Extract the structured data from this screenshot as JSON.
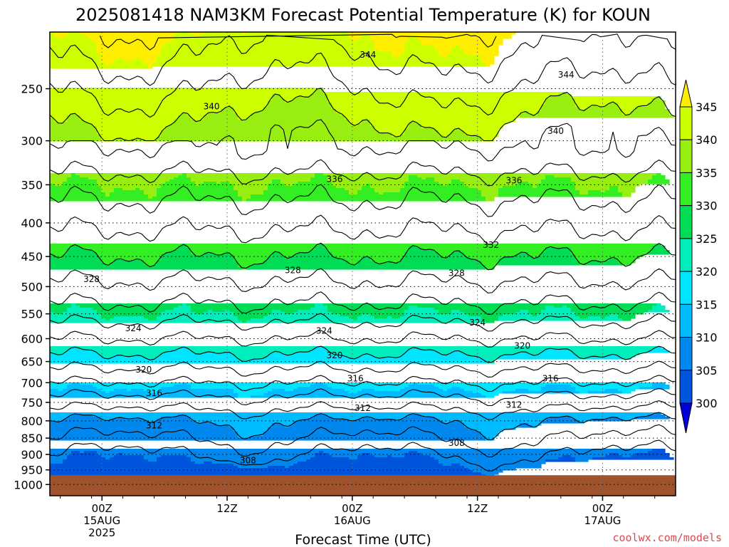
{
  "chart_data": {
    "type": "contour",
    "title": "2025081418 NAM3KM Forecast Potential Temperature (K) for KOUN",
    "xlabel": "Forecast Time (UTC)",
    "ylabel": "",
    "credit": "coolwx.com/models",
    "x_range_hours": [
      -5,
      55
    ],
    "x_ticks": [
      {
        "hour": 0,
        "lines": [
          "00Z",
          "15AUG",
          "2025"
        ]
      },
      {
        "hour": 12,
        "lines": [
          "12Z"
        ]
      },
      {
        "hour": 24,
        "lines": [
          "00Z",
          "16AUG"
        ]
      },
      {
        "hour": 36,
        "lines": [
          "12Z"
        ]
      },
      {
        "hour": 48,
        "lines": [
          "00Z",
          "17AUG"
        ]
      }
    ],
    "y_scale": "log-pressure",
    "y_range_hPa": [
      1040,
      205
    ],
    "y_ticks": [
      250,
      300,
      350,
      400,
      450,
      500,
      550,
      600,
      650,
      700,
      750,
      800,
      850,
      900,
      950,
      1000
    ],
    "ground_pressure_hPa": 968,
    "fill_levels": [
      300,
      305,
      310,
      315,
      320,
      325,
      330,
      335,
      340,
      345
    ],
    "fill_colors": [
      "#0000dd",
      "#0055dd",
      "#0088ee",
      "#00bbff",
      "#00e5ff",
      "#00eebb",
      "#00dd55",
      "#33ee22",
      "#99ee11",
      "#ccff00",
      "#ffee00"
    ],
    "ground_color": "#a0522d",
    "colorbar_labels": [
      "345",
      "340",
      "335",
      "330",
      "325",
      "320",
      "315",
      "310",
      "305",
      "300"
    ],
    "contour_labels": [
      {
        "value": "344",
        "hour": 25.5,
        "hPa": 222
      },
      {
        "value": "344",
        "hour": 44.5,
        "hPa": 238
      },
      {
        "value": "340",
        "hour": 10.5,
        "hPa": 266
      },
      {
        "value": "340",
        "hour": 43.5,
        "hPa": 290
      },
      {
        "value": "336",
        "hour": 22.3,
        "hPa": 343
      },
      {
        "value": "336",
        "hour": 39.5,
        "hPa": 345
      },
      {
        "value": "332",
        "hour": 37.3,
        "hPa": 432
      },
      {
        "value": "328",
        "hour": -1.0,
        "hPa": 487
      },
      {
        "value": "328",
        "hour": 18.3,
        "hPa": 472
      },
      {
        "value": "328",
        "hour": 34.0,
        "hPa": 477
      },
      {
        "value": "324",
        "hour": 3.0,
        "hPa": 579
      },
      {
        "value": "324",
        "hour": 21.3,
        "hPa": 584
      },
      {
        "value": "324",
        "hour": 36.0,
        "hPa": 567
      },
      {
        "value": "320",
        "hour": 4.0,
        "hPa": 669
      },
      {
        "value": "320",
        "hour": 22.3,
        "hPa": 636
      },
      {
        "value": "320",
        "hour": 40.3,
        "hPa": 615
      },
      {
        "value": "316",
        "hour": 5.0,
        "hPa": 726
      },
      {
        "value": "316",
        "hour": 24.3,
        "hPa": 690
      },
      {
        "value": "316",
        "hour": 43.0,
        "hPa": 690
      },
      {
        "value": "312",
        "hour": 5.0,
        "hPa": 813
      },
      {
        "value": "312",
        "hour": 25.0,
        "hPa": 765
      },
      {
        "value": "312",
        "hour": 39.5,
        "hPa": 757
      },
      {
        "value": "308",
        "hour": 14.0,
        "hPa": 919
      },
      {
        "value": "308",
        "hour": 34.0,
        "hPa": 865
      }
    ]
  }
}
